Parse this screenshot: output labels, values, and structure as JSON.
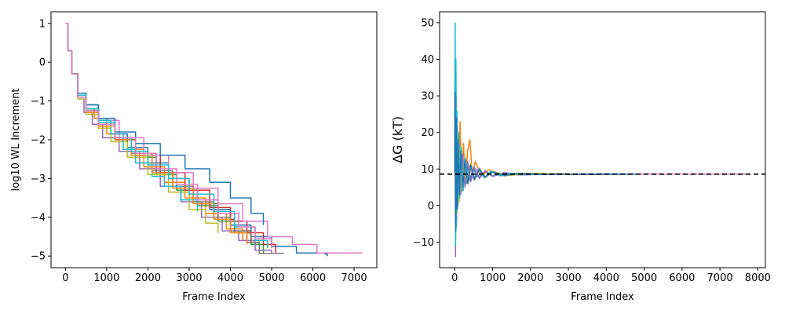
{
  "chart_data": [
    {
      "type": "line",
      "title": "",
      "xlabel": "Frame Index",
      "ylabel": "log10 WL Increment",
      "xlim": [
        -350,
        7550
      ],
      "ylim": [
        -5.3,
        1.3
      ],
      "xticks": [
        0,
        1000,
        2000,
        3000,
        4000,
        5000,
        6000,
        7000
      ],
      "yticks": [
        1,
        0,
        -1,
        -2,
        -3,
        -4,
        -5
      ],
      "grid": false,
      "legend": "none",
      "series": [
        {
          "color": "#1f77b4",
          "x": [
            0,
            60,
            150,
            300,
            500,
            800,
            1100,
            1500,
            2000,
            2500,
            3000,
            3500,
            4000,
            4500,
            5000,
            5600,
            6300,
            6350
          ],
          "y": [
            1.0,
            0.3,
            -0.3,
            -0.8,
            -1.1,
            -1.5,
            -1.85,
            -2.2,
            -2.6,
            -3.0,
            -3.4,
            -3.8,
            -4.2,
            -4.5,
            -4.75,
            -4.92,
            -4.95,
            -5.0
          ]
        },
        {
          "color": "#ff7f0e",
          "x": [
            0,
            60,
            150,
            300,
            500,
            700,
            1000,
            1400,
            1900,
            2400,
            2900,
            3400,
            3900,
            4300,
            4700
          ],
          "y": [
            1.0,
            0.3,
            -0.3,
            -0.85,
            -1.2,
            -1.45,
            -1.85,
            -2.25,
            -2.7,
            -3.1,
            -3.5,
            -3.9,
            -4.3,
            -4.6,
            -4.95
          ]
        },
        {
          "color": "#2ca02c",
          "x": [
            0,
            60,
            150,
            300,
            500,
            800,
            1200,
            1700,
            2200,
            2700,
            3200,
            3700,
            4100,
            4500,
            4800
          ],
          "y": [
            1.0,
            0.3,
            -0.3,
            -0.9,
            -1.25,
            -1.6,
            -2.0,
            -2.45,
            -2.9,
            -3.3,
            -3.7,
            -4.1,
            -4.4,
            -4.7,
            -4.95
          ]
        },
        {
          "color": "#d62728",
          "x": [
            0,
            60,
            150,
            300,
            500,
            800,
            1200,
            1700,
            2300,
            2900,
            3500,
            4000,
            4400,
            4800,
            5100
          ],
          "y": [
            1.0,
            0.3,
            -0.3,
            -0.9,
            -1.2,
            -1.55,
            -1.95,
            -2.4,
            -2.85,
            -3.3,
            -3.75,
            -4.1,
            -4.4,
            -4.7,
            -4.93
          ]
        },
        {
          "color": "#9467bd",
          "x": [
            0,
            60,
            150,
            300,
            450,
            650,
            900,
            1300,
            1800,
            2300,
            2800,
            3300,
            3800,
            4200,
            4600,
            5000
          ],
          "y": [
            1.0,
            0.3,
            -0.3,
            -0.95,
            -1.3,
            -1.6,
            -1.95,
            -2.3,
            -2.75,
            -3.2,
            -3.6,
            -4.0,
            -4.35,
            -4.6,
            -4.85,
            -4.95
          ]
        },
        {
          "color": "#8c564b",
          "x": [
            0,
            60,
            150,
            300,
            500,
            800,
            1200,
            1700,
            2200,
            2700,
            3200,
            3700,
            4100,
            4500,
            4700
          ],
          "y": [
            1.0,
            0.3,
            -0.3,
            -0.9,
            -1.25,
            -1.6,
            -2.0,
            -2.4,
            -2.85,
            -3.25,
            -3.65,
            -4.05,
            -4.35,
            -4.65,
            -4.95
          ]
        },
        {
          "color": "#e377c2",
          "x": [
            0,
            60,
            150,
            300,
            500,
            800,
            1300,
            1900,
            2500,
            3100,
            3700,
            4300,
            4900,
            5500,
            6100,
            7200
          ],
          "y": [
            1.0,
            0.3,
            -0.3,
            -0.85,
            -1.2,
            -1.5,
            -1.95,
            -2.4,
            -2.85,
            -3.25,
            -3.65,
            -4.1,
            -4.5,
            -4.7,
            -4.92,
            -4.92
          ]
        },
        {
          "color": "#7f7f7f",
          "x": [
            0,
            60,
            150,
            300,
            500,
            800,
            1200,
            1600,
            2100,
            2600,
            3100,
            3600,
            4000,
            4400,
            4700,
            5300
          ],
          "y": [
            1.0,
            0.3,
            -0.3,
            -0.9,
            -1.25,
            -1.6,
            -2.0,
            -2.35,
            -2.8,
            -3.2,
            -3.6,
            -4.0,
            -4.35,
            -4.65,
            -4.93,
            -4.93
          ]
        },
        {
          "color": "#bcbd22",
          "x": [
            0,
            60,
            150,
            300,
            500,
            800,
            1100,
            1500,
            2000,
            2500,
            3000,
            3400,
            3700
          ],
          "y": [
            1.0,
            0.3,
            -0.3,
            -0.95,
            -1.35,
            -1.7,
            -2.05,
            -2.45,
            -2.9,
            -3.35,
            -3.8,
            -4.15,
            -4.4
          ]
        },
        {
          "color": "#17becf",
          "x": [
            0,
            60,
            150,
            300,
            500,
            800,
            1100,
            1400,
            1700,
            2100,
            2400,
            2800,
            3200
          ],
          "y": [
            1.0,
            0.3,
            -0.3,
            -0.85,
            -1.2,
            -1.5,
            -1.85,
            -2.25,
            -2.6,
            -2.95,
            -3.2,
            -3.55,
            -3.85
          ]
        },
        {
          "color": "#1f77b4",
          "x": [
            0,
            60,
            150,
            300,
            500,
            800,
            1200,
            1700,
            2300,
            2900,
            3500,
            4000,
            4500,
            4800
          ],
          "y": [
            1.0,
            0.3,
            -0.3,
            -0.8,
            -1.1,
            -1.45,
            -1.8,
            -2.1,
            -2.4,
            -2.75,
            -3.1,
            -3.5,
            -3.9,
            -4.2
          ]
        },
        {
          "color": "#ff7f0e",
          "x": [
            0,
            60,
            150,
            300,
            500,
            800,
            1200,
            1600,
            2100,
            2600,
            3100,
            3600,
            4000,
            4400
          ],
          "y": [
            1.0,
            0.3,
            -0.3,
            -0.9,
            -1.3,
            -1.65,
            -2.0,
            -2.4,
            -2.85,
            -3.25,
            -3.65,
            -4.05,
            -4.4,
            -4.7
          ]
        },
        {
          "color": "#17becf",
          "x": [
            0,
            60,
            150,
            300,
            500,
            800,
            1200,
            1600,
            2000,
            2500,
            3000,
            3600,
            4100,
            4600,
            4900
          ],
          "y": [
            1.0,
            0.3,
            -0.3,
            -0.85,
            -1.2,
            -1.55,
            -1.95,
            -2.3,
            -2.65,
            -3.0,
            -3.4,
            -3.85,
            -4.25,
            -4.6,
            -4.8
          ]
        },
        {
          "color": "#e377c2",
          "x": [
            0,
            60,
            150,
            300,
            500,
            800,
            1200,
            1700,
            2200,
            2700,
            3200,
            3700,
            4200,
            4600,
            5000
          ],
          "y": [
            1.0,
            0.3,
            -0.3,
            -0.9,
            -1.25,
            -1.6,
            -1.95,
            -2.35,
            -2.75,
            -3.15,
            -3.55,
            -3.9,
            -4.25,
            -4.55,
            -4.8
          ]
        }
      ]
    },
    {
      "type": "line",
      "title": "",
      "xlabel": "Frame Index",
      "ylabel": "ΔG (kT)",
      "xlim": [
        -400,
        8200
      ],
      "ylim": [
        -17,
        53
      ],
      "xticks": [
        0,
        1000,
        2000,
        3000,
        4000,
        5000,
        6000,
        7000,
        8000
      ],
      "yticks": [
        50,
        40,
        30,
        20,
        10,
        0,
        -10
      ],
      "grid": false,
      "legend": "none",
      "reference_line": {
        "y": 8.6,
        "style": "dashed",
        "color": "#000000"
      },
      "series": [
        {
          "color": "#17becf",
          "x": [
            0,
            10,
            20,
            30,
            45,
            60,
            80,
            100,
            130,
            160,
            200,
            250,
            300,
            350,
            400,
            500,
            600,
            800,
            1000,
            1300,
            1700,
            2200,
            3000,
            4000
          ],
          "y": [
            10,
            50,
            -8,
            40,
            -2,
            25,
            0,
            18,
            3,
            15,
            5,
            12,
            6,
            11,
            7,
            10,
            7.8,
            9.2,
            8.1,
            8.9,
            8.4,
            8.7,
            8.6,
            8.6
          ]
        },
        {
          "color": "#1f77b4",
          "x": [
            0,
            10,
            20,
            35,
            50,
            70,
            90,
            120,
            160,
            200,
            260,
            320,
            400,
            500,
            650,
            800,
            1000,
            1300,
            1800,
            2500,
            3500,
            5000,
            6500,
            7800
          ],
          "y": [
            12,
            38,
            -10,
            30,
            -4,
            22,
            1,
            16,
            4,
            13,
            6,
            12,
            7,
            10.5,
            7.5,
            9.5,
            8.0,
            9.0,
            8.4,
            8.7,
            8.5,
            8.6,
            8.6,
            8.6
          ]
        },
        {
          "color": "#ff7f0e",
          "x": [
            0,
            10,
            20,
            35,
            50,
            70,
            100,
            140,
            180,
            230,
            280,
            340,
            400,
            460,
            550,
            700,
            900,
            1200,
            1600,
            2200,
            3000
          ],
          "y": [
            8,
            30,
            -7,
            27,
            -3,
            20,
            2,
            23,
            5,
            17,
            7,
            15,
            18,
            9,
            12,
            8,
            9.8,
            8.2,
            8.8,
            8.5,
            8.6
          ]
        },
        {
          "color": "#2ca02c",
          "x": [
            0,
            10,
            25,
            40,
            60,
            85,
            120,
            160,
            210,
            270,
            340,
            420,
            520,
            650,
            800,
            1000,
            1300,
            1700,
            2300,
            3100
          ],
          "y": [
            9,
            33,
            -6,
            24,
            -1,
            19,
            3,
            15,
            5,
            13,
            6,
            11,
            7,
            10,
            7.7,
            9.3,
            8.1,
            8.8,
            8.5,
            8.6
          ]
        },
        {
          "color": "#d62728",
          "x": [
            0,
            10,
            20,
            35,
            55,
            80,
            110,
            150,
            200,
            260,
            330,
            420,
            520,
            650,
            800,
            1000,
            1300,
            1800,
            2500,
            3500,
            5000,
            6500,
            7800
          ],
          "y": [
            11,
            35,
            -9,
            28,
            -2,
            20,
            2,
            14,
            4,
            12,
            6,
            11,
            7.2,
            10.2,
            7.6,
            9.4,
            8.2,
            8.8,
            8.5,
            8.6,
            8.6,
            8.6,
            8.6
          ]
        },
        {
          "color": "#9467bd",
          "x": [
            0,
            10,
            20,
            30,
            45,
            65,
            90,
            120,
            160,
            210,
            270,
            340,
            420,
            520,
            650,
            800,
            1000,
            1300,
            1800,
            2500
          ],
          "y": [
            10,
            40,
            -14,
            32,
            -5,
            24,
            0,
            17,
            3,
            14,
            5,
            12,
            6.5,
            10.5,
            7.4,
            9.5,
            8.0,
            8.9,
            8.4,
            8.6
          ]
        },
        {
          "color": "#8c564b",
          "x": [
            0,
            10,
            25,
            40,
            60,
            85,
            120,
            160,
            210,
            270,
            340,
            420,
            520,
            650,
            800,
            1000,
            1400,
            2000,
            2800
          ],
          "y": [
            9,
            28,
            -5,
            22,
            0,
            17,
            3,
            14,
            5,
            12,
            6,
            11,
            7.2,
            10,
            7.8,
            9.2,
            8.3,
            8.7,
            8.6
          ]
        },
        {
          "color": "#e377c2",
          "x": [
            0,
            10,
            20,
            35,
            50,
            70,
            100,
            140,
            190,
            250,
            320,
            400,
            500,
            620,
            780,
            1000,
            1300,
            1800,
            2600,
            3800,
            5500,
            6600,
            7800
          ],
          "y": [
            10,
            36,
            -8,
            26,
            -3,
            19,
            2,
            15,
            4,
            12,
            6,
            11,
            7,
            10.3,
            7.6,
            9.4,
            8.1,
            8.8,
            8.5,
            8.6,
            8.6,
            8.6,
            8.6
          ]
        },
        {
          "color": "#7f7f7f",
          "x": [
            0,
            10,
            25,
            40,
            60,
            85,
            120,
            160,
            210,
            270,
            340,
            420,
            520,
            650,
            800,
            1000,
            1400,
            2000,
            3000
          ],
          "y": [
            9,
            30,
            -6,
            23,
            0,
            17,
            3,
            14,
            5,
            12,
            6,
            11,
            7.3,
            10,
            7.8,
            9.2,
            8.3,
            8.7,
            8.6
          ]
        },
        {
          "color": "#bcbd22",
          "x": [
            0,
            10,
            20,
            35,
            55,
            80,
            110,
            150,
            200,
            260,
            330,
            420,
            520,
            650,
            800,
            1000,
            1400,
            2000,
            2800,
            3600
          ],
          "y": [
            10,
            34,
            -10,
            27,
            -2,
            20,
            1,
            16,
            4,
            13,
            6,
            11.5,
            7,
            10.2,
            7.7,
            9.3,
            8.2,
            8.8,
            8.6,
            8.6
          ]
        },
        {
          "color": "#17becf",
          "x": [
            0,
            10,
            20,
            30,
            40,
            55,
            75,
            100,
            130,
            170,
            220,
            280,
            350,
            430,
            520,
            640,
            780,
            950,
            1200,
            1500,
            1900,
            2400
          ],
          "y": [
            12,
            46,
            -11,
            36,
            -6,
            26,
            -1,
            20,
            2,
            16,
            4,
            13,
            6,
            11,
            7,
            10,
            7.6,
            9.4,
            8.1,
            8.8,
            8.5,
            8.6
          ]
        },
        {
          "color": "#1f77b4",
          "x": [
            0,
            10,
            25,
            40,
            60,
            85,
            120,
            160,
            210,
            270,
            340,
            420,
            520,
            650,
            800,
            1000,
            1300,
            1800,
            2500,
            3500,
            4800
          ],
          "y": [
            9,
            31,
            -7,
            24,
            -1,
            18,
            3,
            15,
            5,
            12.5,
            6,
            11,
            7.2,
            10,
            7.8,
            9.2,
            8.3,
            8.7,
            8.5,
            8.6,
            8.6
          ]
        }
      ]
    }
  ]
}
